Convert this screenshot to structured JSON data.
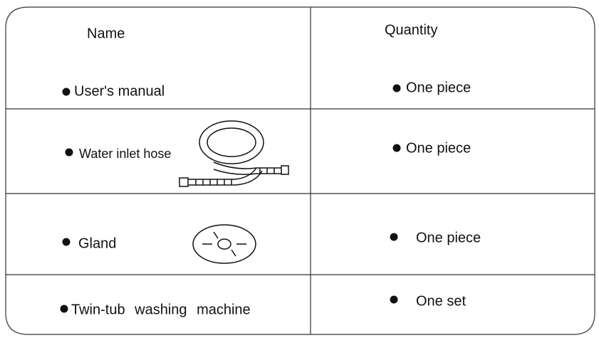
{
  "table": {
    "header": [
      "Name",
      "Quantity"
    ],
    "rows": [
      [
        "User's manual",
        "One piece"
      ],
      [
        "Water inlet hose",
        "One piece"
      ],
      [
        "Gland",
        "One piece"
      ],
      [
        "Twin-tub washing machine",
        "One set"
      ]
    ]
  }
}
